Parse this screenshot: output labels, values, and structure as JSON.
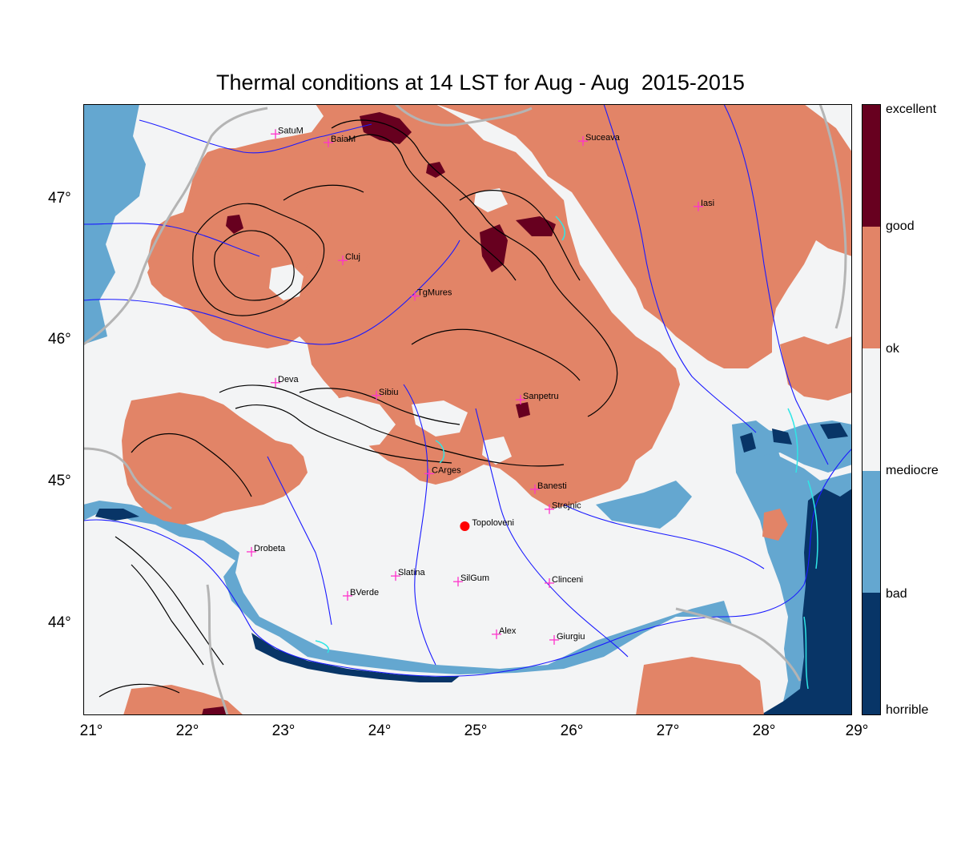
{
  "title": "Thermal conditions at 14 LST for Aug - Aug  2015-2015",
  "colors": {
    "excellent": "#67001f",
    "good": "#e28467",
    "ok": "#f3f4f5",
    "mediocre": "#64a7d0",
    "bad": "#083567",
    "river": "#1a1aff",
    "border": "#b4b4b4",
    "contour": "#000000",
    "city_marker": "#ff33cc",
    "highlight_point": "#ff0000",
    "lake": "#2fe6e6"
  },
  "colorbar": {
    "labels": [
      "excellent",
      "good",
      "ok",
      "mediocre",
      "bad",
      "horrible"
    ]
  },
  "axes": {
    "lon_ticks": [
      "21°",
      "22°",
      "23°",
      "24°",
      "25°",
      "26°",
      "27°",
      "28°",
      "29°"
    ],
    "lat_ticks": [
      "47°",
      "46°",
      "45°",
      "44°"
    ],
    "lon_range": [
      21,
      29
    ],
    "lat_range": [
      43.35,
      47.65
    ]
  },
  "cities": [
    {
      "name": "SatuM",
      "lon": 23.0,
      "lat": 47.44
    },
    {
      "name": "BaiaM",
      "lon": 23.55,
      "lat": 47.38
    },
    {
      "name": "Suceava",
      "lon": 26.2,
      "lat": 47.39
    },
    {
      "name": "Iasi",
      "lon": 27.4,
      "lat": 46.93
    },
    {
      "name": "Cluj",
      "lon": 23.7,
      "lat": 46.55
    },
    {
      "name": "TgMures",
      "lon": 24.45,
      "lat": 46.3
    },
    {
      "name": "Deva",
      "lon": 23.0,
      "lat": 45.69
    },
    {
      "name": "Sibiu",
      "lon": 24.05,
      "lat": 45.6
    },
    {
      "name": "Sanpetru",
      "lon": 25.55,
      "lat": 45.57
    },
    {
      "name": "CArges",
      "lon": 24.6,
      "lat": 45.05
    },
    {
      "name": "Banesti",
      "lon": 25.7,
      "lat": 44.94
    },
    {
      "name": "Strejnic",
      "lon": 25.85,
      "lat": 44.8
    },
    {
      "name": "Drobeta",
      "lon": 22.75,
      "lat": 44.5
    },
    {
      "name": "Slatina",
      "lon": 24.25,
      "lat": 44.33
    },
    {
      "name": "SilGum",
      "lon": 24.9,
      "lat": 44.29
    },
    {
      "name": "Clinceni",
      "lon": 25.85,
      "lat": 44.28
    },
    {
      "name": "BVerde",
      "lon": 23.75,
      "lat": 44.19
    },
    {
      "name": "Alex",
      "lon": 25.3,
      "lat": 43.92
    },
    {
      "name": "Giurgiu",
      "lon": 25.9,
      "lat": 43.88
    }
  ],
  "highlight": {
    "name": "Topoloveni",
    "lon": 24.97,
    "lat": 44.68
  }
}
